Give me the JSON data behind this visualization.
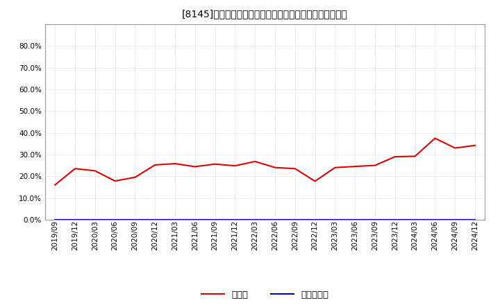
{
  "title": "[8145]　現顔金、有利子負債の総資産に対する比率の推移",
  "x_labels": [
    "2019/09",
    "2019/12",
    "2020/03",
    "2020/06",
    "2020/09",
    "2020/12",
    "2021/03",
    "2021/06",
    "2021/09",
    "2021/12",
    "2022/03",
    "2022/06",
    "2022/09",
    "2022/12",
    "2023/03",
    "2023/06",
    "2023/09",
    "2023/12",
    "2024/03",
    "2024/06",
    "2024/09",
    "2024/12"
  ],
  "cash_values": [
    0.16,
    0.235,
    0.225,
    0.178,
    0.195,
    0.252,
    0.258,
    0.244,
    0.256,
    0.248,
    0.268,
    0.24,
    0.235,
    0.177,
    0.24,
    0.245,
    0.25,
    0.29,
    0.292,
    0.375,
    0.33,
    0.342
  ],
  "debt_values": [
    0.0,
    0.0,
    0.0,
    0.0,
    0.0,
    0.0,
    0.0,
    0.0,
    0.0,
    0.0,
    0.0,
    0.0,
    0.0,
    0.0,
    0.0,
    0.0,
    0.0,
    0.0,
    0.0,
    0.0,
    0.0,
    0.0
  ],
  "cash_color": "#dd0000",
  "debt_color": "#0000cc",
  "bg_color": "#ffffff",
  "plot_bg_color": "#ffffff",
  "grid_color": "#aaaaaa",
  "ylim": [
    0.0,
    0.9
  ],
  "yticks": [
    0.0,
    0.1,
    0.2,
    0.3,
    0.4,
    0.5,
    0.6,
    0.7,
    0.8
  ],
  "legend_cash": "現顔金",
  "legend_debt": "有利子負債",
  "title_fontsize": 11,
  "axis_fontsize": 7.5,
  "legend_fontsize": 9.5
}
